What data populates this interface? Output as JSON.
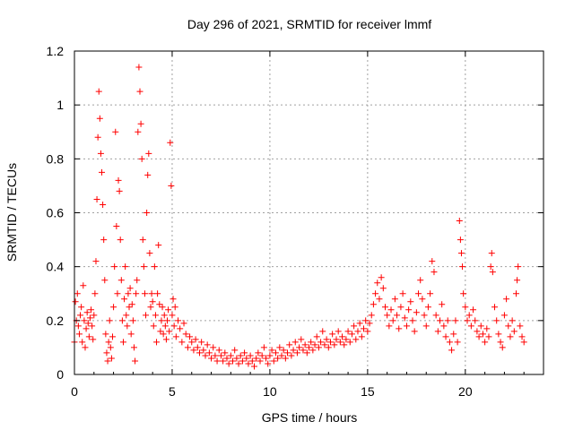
{
  "chart_data": {
    "type": "scatter",
    "title": "Day 296 of 2021, SRMTID for receiver lmmf",
    "xlabel": "GPS time / hours",
    "ylabel": "SRMTID / TECUs",
    "xlim": [
      0,
      24
    ],
    "ylim": [
      0,
      1.2
    ],
    "xticks": [
      0,
      5,
      10,
      15,
      20
    ],
    "xtick_labels": [
      "0",
      "5",
      "10",
      "15",
      "20"
    ],
    "yticks": [
      0,
      0.2,
      0.4,
      0.6,
      0.8,
      1.0,
      1.2
    ],
    "ytick_labels": [
      "0",
      "0.2",
      "0.4",
      "0.6",
      "0.8",
      "1",
      "1.2"
    ],
    "grid": true,
    "marker": "plus",
    "series": [
      {
        "name": "SRMTID",
        "color": "#ff0000",
        "points": [
          [
            0.0,
            0.12
          ],
          [
            0.05,
            0.27
          ],
          [
            0.1,
            0.2
          ],
          [
            0.15,
            0.3
          ],
          [
            0.2,
            0.18
          ],
          [
            0.25,
            0.15
          ],
          [
            0.3,
            0.22
          ],
          [
            0.35,
            0.25
          ],
          [
            0.4,
            0.12
          ],
          [
            0.45,
            0.33
          ],
          [
            0.5,
            0.2
          ],
          [
            0.55,
            0.1
          ],
          [
            0.6,
            0.17
          ],
          [
            0.65,
            0.23
          ],
          [
            0.7,
            0.19
          ],
          [
            0.75,
            0.14
          ],
          [
            0.8,
            0.21
          ],
          [
            0.85,
            0.24
          ],
          [
            0.9,
            0.18
          ],
          [
            0.95,
            0.13
          ],
          [
            1.0,
            0.22
          ],
          [
            1.05,
            0.3
          ],
          [
            1.1,
            0.42
          ],
          [
            1.15,
            0.65
          ],
          [
            1.2,
            0.88
          ],
          [
            1.25,
            1.05
          ],
          [
            1.3,
            0.95
          ],
          [
            1.35,
            0.82
          ],
          [
            1.4,
            0.75
          ],
          [
            1.45,
            0.63
          ],
          [
            1.5,
            0.5
          ],
          [
            1.55,
            0.35
          ],
          [
            1.6,
            0.15
          ],
          [
            1.65,
            0.08
          ],
          [
            1.7,
            0.05
          ],
          [
            1.75,
            0.12
          ],
          [
            1.8,
            0.2
          ],
          [
            1.85,
            0.1
          ],
          [
            1.9,
            0.06
          ],
          [
            1.95,
            0.14
          ],
          [
            2.0,
            0.25
          ],
          [
            2.05,
            0.4
          ],
          [
            2.1,
            0.9
          ],
          [
            2.15,
            0.55
          ],
          [
            2.2,
            0.3
          ],
          [
            2.25,
            0.72
          ],
          [
            2.3,
            0.68
          ],
          [
            2.35,
            0.5
          ],
          [
            2.4,
            0.35
          ],
          [
            2.45,
            0.2
          ],
          [
            2.5,
            0.12
          ],
          [
            2.55,
            0.28
          ],
          [
            2.6,
            0.4
          ],
          [
            2.65,
            0.22
          ],
          [
            2.7,
            0.18
          ],
          [
            2.75,
            0.3
          ],
          [
            2.8,
            0.25
          ],
          [
            2.85,
            0.32
          ],
          [
            2.9,
            0.15
          ],
          [
            2.95,
            0.26
          ],
          [
            3.0,
            0.2
          ],
          [
            3.05,
            0.1
          ],
          [
            3.1,
            0.05
          ],
          [
            3.15,
            0.3
          ],
          [
            3.2,
            0.35
          ],
          [
            3.25,
            0.9
          ],
          [
            3.3,
            1.14
          ],
          [
            3.35,
            1.05
          ],
          [
            3.4,
            0.93
          ],
          [
            3.45,
            0.8
          ],
          [
            3.5,
            0.5
          ],
          [
            3.55,
            0.4
          ],
          [
            3.6,
            0.3
          ],
          [
            3.65,
            0.22
          ],
          [
            3.7,
            0.6
          ],
          [
            3.75,
            0.74
          ],
          [
            3.8,
            0.82
          ],
          [
            3.85,
            0.45
          ],
          [
            3.9,
            0.25
          ],
          [
            3.95,
            0.3
          ],
          [
            4.0,
            0.27
          ],
          [
            4.05,
            0.18
          ],
          [
            4.1,
            0.4
          ],
          [
            4.15,
            0.22
          ],
          [
            4.2,
            0.12
          ],
          [
            4.25,
            0.3
          ],
          [
            4.3,
            0.48
          ],
          [
            4.35,
            0.26
          ],
          [
            4.4,
            0.16
          ],
          [
            4.45,
            0.2
          ],
          [
            4.5,
            0.25
          ],
          [
            4.55,
            0.15
          ],
          [
            4.6,
            0.22
          ],
          [
            4.65,
            0.18
          ],
          [
            4.7,
            0.13
          ],
          [
            4.75,
            0.2
          ],
          [
            4.8,
            0.24
          ],
          [
            4.85,
            0.16
          ],
          [
            4.9,
            0.86
          ],
          [
            4.95,
            0.7
          ],
          [
            5.0,
            0.22
          ],
          [
            5.05,
            0.28
          ],
          [
            5.1,
            0.18
          ],
          [
            5.15,
            0.25
          ],
          [
            5.2,
            0.14
          ],
          [
            5.3,
            0.2
          ],
          [
            5.4,
            0.17
          ],
          [
            5.5,
            0.12
          ],
          [
            5.6,
            0.19
          ],
          [
            5.7,
            0.15
          ],
          [
            5.8,
            0.1
          ],
          [
            5.9,
            0.14
          ],
          [
            6.0,
            0.12
          ],
          [
            6.1,
            0.09
          ],
          [
            6.2,
            0.13
          ],
          [
            6.3,
            0.1
          ],
          [
            6.4,
            0.08
          ],
          [
            6.5,
            0.12
          ],
          [
            6.6,
            0.09
          ],
          [
            6.7,
            0.07
          ],
          [
            6.8,
            0.11
          ],
          [
            6.9,
            0.08
          ],
          [
            7.0,
            0.06
          ],
          [
            7.1,
            0.1
          ],
          [
            7.2,
            0.07
          ],
          [
            7.3,
            0.05
          ],
          [
            7.4,
            0.09
          ],
          [
            7.5,
            0.07
          ],
          [
            7.6,
            0.05
          ],
          [
            7.7,
            0.08
          ],
          [
            7.8,
            0.06
          ],
          [
            7.9,
            0.04
          ],
          [
            8.0,
            0.07
          ],
          [
            8.1,
            0.05
          ],
          [
            8.2,
            0.09
          ],
          [
            8.3,
            0.06
          ],
          [
            8.4,
            0.04
          ],
          [
            8.5,
            0.07
          ],
          [
            8.6,
            0.05
          ],
          [
            8.7,
            0.08
          ],
          [
            8.8,
            0.06
          ],
          [
            8.9,
            0.04
          ],
          [
            9.0,
            0.07
          ],
          [
            9.1,
            0.05
          ],
          [
            9.2,
            0.03
          ],
          [
            9.3,
            0.06
          ],
          [
            9.4,
            0.08
          ],
          [
            9.5,
            0.05
          ],
          [
            9.6,
            0.07
          ],
          [
            9.7,
            0.1
          ],
          [
            9.8,
            0.06
          ],
          [
            9.9,
            0.04
          ],
          [
            10.0,
            0.07
          ],
          [
            10.1,
            0.09
          ],
          [
            10.2,
            0.05
          ],
          [
            10.3,
            0.08
          ],
          [
            10.4,
            0.06
          ],
          [
            10.5,
            0.1
          ],
          [
            10.6,
            0.07
          ],
          [
            10.7,
            0.09
          ],
          [
            10.8,
            0.06
          ],
          [
            10.9,
            0.08
          ],
          [
            11.0,
            0.11
          ],
          [
            11.1,
            0.07
          ],
          [
            11.2,
            0.09
          ],
          [
            11.3,
            0.12
          ],
          [
            11.4,
            0.08
          ],
          [
            11.5,
            0.1
          ],
          [
            11.6,
            0.13
          ],
          [
            11.7,
            0.09
          ],
          [
            11.8,
            0.11
          ],
          [
            11.9,
            0.08
          ],
          [
            12.0,
            0.1
          ],
          [
            12.1,
            0.12
          ],
          [
            12.2,
            0.09
          ],
          [
            12.3,
            0.11
          ],
          [
            12.4,
            0.14
          ],
          [
            12.5,
            0.1
          ],
          [
            12.6,
            0.12
          ],
          [
            12.7,
            0.16
          ],
          [
            12.8,
            0.11
          ],
          [
            12.9,
            0.13
          ],
          [
            13.0,
            0.1
          ],
          [
            13.1,
            0.12
          ],
          [
            13.2,
            0.15
          ],
          [
            13.3,
            0.11
          ],
          [
            13.4,
            0.13
          ],
          [
            13.5,
            0.16
          ],
          [
            13.6,
            0.12
          ],
          [
            13.7,
            0.14
          ],
          [
            13.8,
            0.11
          ],
          [
            13.9,
            0.13
          ],
          [
            14.0,
            0.16
          ],
          [
            14.1,
            0.12
          ],
          [
            14.2,
            0.15
          ],
          [
            14.3,
            0.18
          ],
          [
            14.4,
            0.13
          ],
          [
            14.5,
            0.16
          ],
          [
            14.6,
            0.19
          ],
          [
            14.7,
            0.14
          ],
          [
            14.8,
            0.17
          ],
          [
            14.9,
            0.2
          ],
          [
            15.0,
            0.16
          ],
          [
            15.1,
            0.19
          ],
          [
            15.2,
            0.22
          ],
          [
            15.3,
            0.26
          ],
          [
            15.4,
            0.3
          ],
          [
            15.5,
            0.34
          ],
          [
            15.6,
            0.28
          ],
          [
            15.7,
            0.36
          ],
          [
            15.8,
            0.32
          ],
          [
            15.9,
            0.25
          ],
          [
            16.0,
            0.22
          ],
          [
            16.1,
            0.18
          ],
          [
            16.2,
            0.24
          ],
          [
            16.3,
            0.2
          ],
          [
            16.4,
            0.28
          ],
          [
            16.5,
            0.22
          ],
          [
            16.6,
            0.17
          ],
          [
            16.7,
            0.25
          ],
          [
            16.8,
            0.3
          ],
          [
            16.9,
            0.21
          ],
          [
            17.0,
            0.18
          ],
          [
            17.1,
            0.24
          ],
          [
            17.2,
            0.27
          ],
          [
            17.3,
            0.2
          ],
          [
            17.4,
            0.16
          ],
          [
            17.5,
            0.23
          ],
          [
            17.6,
            0.3
          ],
          [
            17.7,
            0.35
          ],
          [
            17.8,
            0.28
          ],
          [
            17.9,
            0.22
          ],
          [
            18.0,
            0.18
          ],
          [
            18.1,
            0.25
          ],
          [
            18.2,
            0.3
          ],
          [
            18.3,
            0.42
          ],
          [
            18.4,
            0.38
          ],
          [
            18.5,
            0.22
          ],
          [
            18.6,
            0.16
          ],
          [
            18.7,
            0.2
          ],
          [
            18.8,
            0.26
          ],
          [
            18.9,
            0.18
          ],
          [
            19.0,
            0.14
          ],
          [
            19.1,
            0.2
          ],
          [
            19.2,
            0.12
          ],
          [
            19.3,
            0.09
          ],
          [
            19.4,
            0.15
          ],
          [
            19.5,
            0.2
          ],
          [
            19.6,
            0.12
          ],
          [
            19.7,
            0.57
          ],
          [
            19.75,
            0.5
          ],
          [
            19.8,
            0.45
          ],
          [
            19.85,
            0.4
          ],
          [
            19.9,
            0.3
          ],
          [
            20.0,
            0.25
          ],
          [
            20.1,
            0.2
          ],
          [
            20.2,
            0.22
          ],
          [
            20.3,
            0.18
          ],
          [
            20.4,
            0.24
          ],
          [
            20.5,
            0.2
          ],
          [
            20.6,
            0.16
          ],
          [
            20.7,
            0.14
          ],
          [
            20.8,
            0.18
          ],
          [
            20.9,
            0.15
          ],
          [
            21.0,
            0.12
          ],
          [
            21.1,
            0.17
          ],
          [
            21.2,
            0.14
          ],
          [
            21.3,
            0.4
          ],
          [
            21.35,
            0.45
          ],
          [
            21.4,
            0.38
          ],
          [
            21.5,
            0.25
          ],
          [
            21.6,
            0.2
          ],
          [
            21.7,
            0.15
          ],
          [
            21.8,
            0.12
          ],
          [
            21.9,
            0.1
          ],
          [
            22.0,
            0.22
          ],
          [
            22.1,
            0.28
          ],
          [
            22.2,
            0.18
          ],
          [
            22.3,
            0.14
          ],
          [
            22.4,
            0.2
          ],
          [
            22.5,
            0.16
          ],
          [
            22.6,
            0.3
          ],
          [
            22.65,
            0.35
          ],
          [
            22.7,
            0.4
          ],
          [
            22.8,
            0.18
          ],
          [
            22.9,
            0.14
          ],
          [
            23.0,
            0.12
          ]
        ]
      }
    ]
  },
  "colors": {
    "points": "#ff0000",
    "grid": "#a0a0a0",
    "frame": "#000000"
  }
}
